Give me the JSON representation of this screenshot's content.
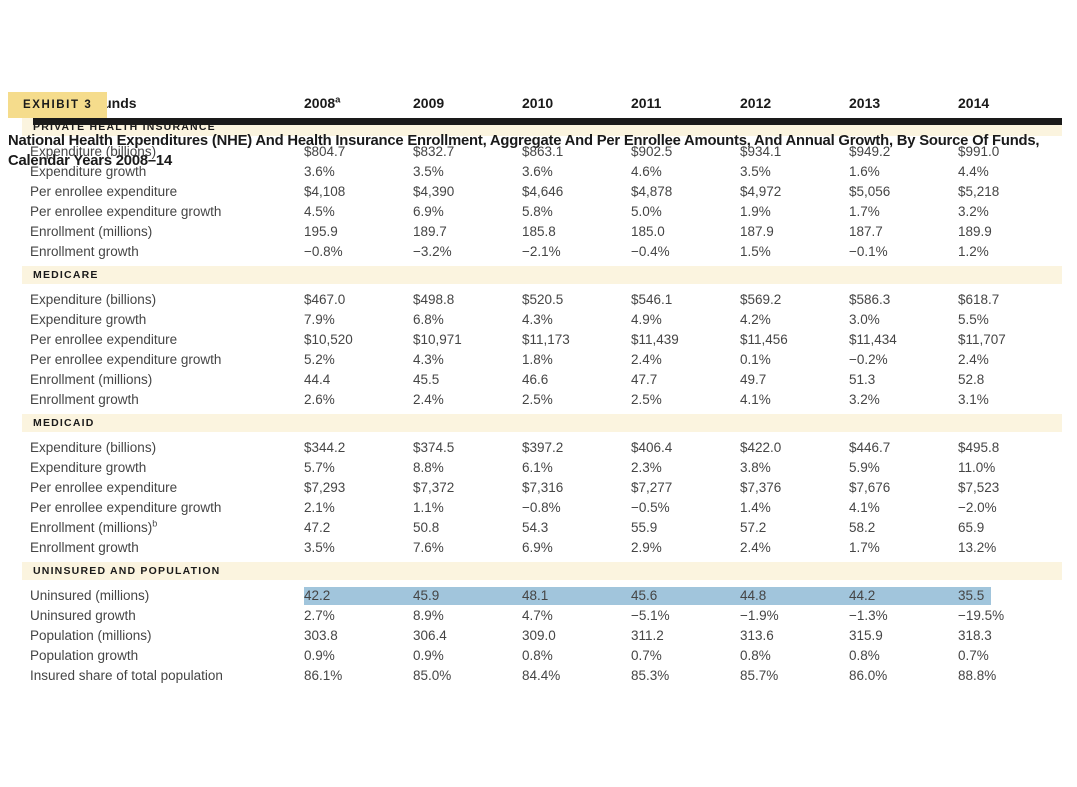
{
  "exhibit": {
    "label": "EXHIBIT 3"
  },
  "title": {
    "line1": "National Health Expenditures (NHE) And Health Insurance Enrollment, Aggregate And Per Enrollee Amounts, And Annual Growth, By Source Of Funds,",
    "line2": "Calendar Years 2008–14"
  },
  "colors": {
    "badge_bg": "#f5dc8c",
    "band_bg": "#fbf4df",
    "highlight": "#a1c5dc",
    "heading_text": "#1a1a1a",
    "body_text": "#454545",
    "rule": "#1a1a1a"
  },
  "table": {
    "row_header": "Source of funds",
    "years": [
      {
        "label": "2008",
        "sup": "a"
      },
      {
        "label": "2009",
        "sup": ""
      },
      {
        "label": "2010",
        "sup": ""
      },
      {
        "label": "2011",
        "sup": ""
      },
      {
        "label": "2012",
        "sup": ""
      },
      {
        "label": "2013",
        "sup": ""
      },
      {
        "label": "2014",
        "sup": ""
      }
    ],
    "sections": [
      {
        "heading": "PRIVATE HEALTH INSURANCE",
        "rows": [
          {
            "label": "Expenditure (billions)",
            "sup": "",
            "highlight": false,
            "values": [
              "$804.7",
              "$832.7",
              "$863.1",
              "$902.5",
              "$934.1",
              "$949.2",
              "$991.0"
            ]
          },
          {
            "label": "Expenditure growth",
            "sup": "",
            "highlight": false,
            "values": [
              "3.6%",
              "3.5%",
              "3.6%",
              "4.6%",
              "3.5%",
              "1.6%",
              "4.4%"
            ]
          },
          {
            "label": "Per enrollee expenditure",
            "sup": "",
            "highlight": false,
            "values": [
              "$4,108",
              "$4,390",
              "$4,646",
              "$4,878",
              "$4,972",
              "$5,056",
              "$5,218"
            ]
          },
          {
            "label": "Per enrollee expenditure growth",
            "sup": "",
            "highlight": false,
            "values": [
              "4.5%",
              "6.9%",
              "5.8%",
              "5.0%",
              "1.9%",
              "1.7%",
              "3.2%"
            ]
          },
          {
            "label": "Enrollment (millions)",
            "sup": "",
            "highlight": false,
            "values": [
              "195.9",
              "189.7",
              "185.8",
              "185.0",
              "187.9",
              "187.7",
              "189.9"
            ]
          },
          {
            "label": "Enrollment growth",
            "sup": "",
            "highlight": false,
            "values": [
              "−0.8%",
              "−3.2%",
              "−2.1%",
              "−0.4%",
              "1.5%",
              "−0.1%",
              "1.2%"
            ]
          }
        ]
      },
      {
        "heading": "MEDICARE",
        "rows": [
          {
            "label": "Expenditure (billions)",
            "sup": "",
            "highlight": false,
            "values": [
              "$467.0",
              "$498.8",
              "$520.5",
              "$546.1",
              "$569.2",
              "$586.3",
              "$618.7"
            ]
          },
          {
            "label": "Expenditure growth",
            "sup": "",
            "highlight": false,
            "values": [
              "7.9%",
              "6.8%",
              "4.3%",
              "4.9%",
              "4.2%",
              "3.0%",
              "5.5%"
            ]
          },
          {
            "label": "Per enrollee expenditure",
            "sup": "",
            "highlight": false,
            "values": [
              "$10,520",
              "$10,971",
              "$11,173",
              "$11,439",
              "$11,456",
              "$11,434",
              "$11,707"
            ]
          },
          {
            "label": "Per enrollee expenditure growth",
            "sup": "",
            "highlight": false,
            "values": [
              "5.2%",
              "4.3%",
              "1.8%",
              "2.4%",
              "0.1%",
              "−0.2%",
              "2.4%"
            ]
          },
          {
            "label": "Enrollment (millions)",
            "sup": "",
            "highlight": false,
            "values": [
              "44.4",
              "45.5",
              "46.6",
              "47.7",
              "49.7",
              "51.3",
              "52.8"
            ]
          },
          {
            "label": "Enrollment growth",
            "sup": "",
            "highlight": false,
            "values": [
              "2.6%",
              "2.4%",
              "2.5%",
              "2.5%",
              "4.1%",
              "3.2%",
              "3.1%"
            ]
          }
        ]
      },
      {
        "heading": "MEDICAID",
        "rows": [
          {
            "label": "Expenditure (billions)",
            "sup": "",
            "highlight": false,
            "values": [
              "$344.2",
              "$374.5",
              "$397.2",
              "$406.4",
              "$422.0",
              "$446.7",
              "$495.8"
            ]
          },
          {
            "label": "Expenditure growth",
            "sup": "",
            "highlight": false,
            "values": [
              "5.7%",
              "8.8%",
              "6.1%",
              "2.3%",
              "3.8%",
              "5.9%",
              "11.0%"
            ]
          },
          {
            "label": "Per enrollee expenditure",
            "sup": "",
            "highlight": false,
            "values": [
              "$7,293",
              "$7,372",
              "$7,316",
              "$7,277",
              "$7,376",
              "$7,676",
              "$7,523"
            ]
          },
          {
            "label": "Per enrollee expenditure growth",
            "sup": "",
            "highlight": false,
            "values": [
              "2.1%",
              "1.1%",
              "−0.8%",
              "−0.5%",
              "1.4%",
              "4.1%",
              "−2.0%"
            ]
          },
          {
            "label": "Enrollment (millions)",
            "sup": "b",
            "highlight": false,
            "values": [
              "47.2",
              "50.8",
              "54.3",
              "55.9",
              "57.2",
              "58.2",
              "65.9"
            ]
          },
          {
            "label": "Enrollment growth",
            "sup": "",
            "highlight": false,
            "values": [
              "3.5%",
              "7.6%",
              "6.9%",
              "2.9%",
              "2.4%",
              "1.7%",
              "13.2%"
            ]
          }
        ]
      },
      {
        "heading": "UNINSURED AND POPULATION",
        "rows": [
          {
            "label": "Uninsured (millions)",
            "sup": "",
            "highlight": true,
            "values": [
              "42.2",
              "45.9",
              "48.1",
              "45.6",
              "44.8",
              "44.2",
              "35.5"
            ]
          },
          {
            "label": "Uninsured growth",
            "sup": "",
            "highlight": false,
            "values": [
              "2.7%",
              "8.9%",
              "4.7%",
              "−5.1%",
              "−1.9%",
              "−1.3%",
              "−19.5%"
            ]
          },
          {
            "label": "Population (millions)",
            "sup": "",
            "highlight": false,
            "values": [
              "303.8",
              "306.4",
              "309.0",
              "311.2",
              "313.6",
              "315.9",
              "318.3"
            ]
          },
          {
            "label": "Population growth",
            "sup": "",
            "highlight": false,
            "values": [
              "0.9%",
              "0.9%",
              "0.8%",
              "0.7%",
              "0.8%",
              "0.8%",
              "0.7%"
            ]
          },
          {
            "label": "Insured share of total population",
            "sup": "",
            "highlight": false,
            "values": [
              "86.1%",
              "85.0%",
              "84.4%",
              "85.3%",
              "85.7%",
              "86.0%",
              "88.8%"
            ]
          }
        ]
      }
    ]
  }
}
